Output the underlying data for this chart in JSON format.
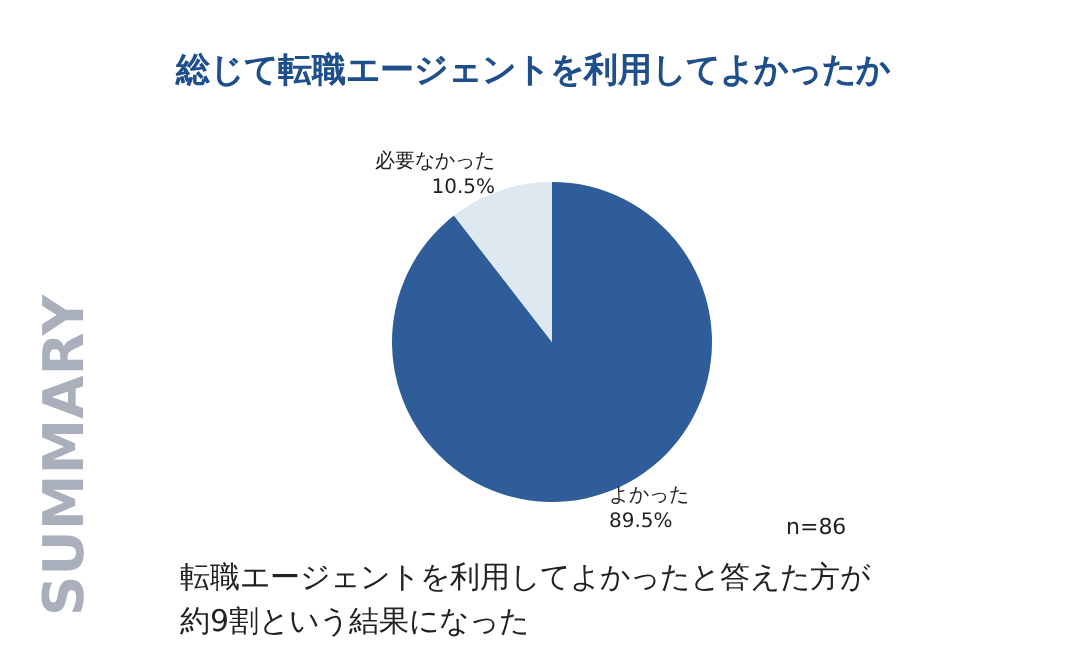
{
  "chart_data": {
    "type": "pie",
    "title": "総じて転職エージェントを利用してよかったか",
    "categories": [
      "よかった",
      "必要なかった"
    ],
    "values": [
      89.5,
      10.5
    ],
    "colors": [
      "#2e5d99",
      "#dde8f0"
    ],
    "value_labels": [
      "89.5%",
      "10.5%"
    ],
    "legend": false,
    "annotations": [
      "n=86",
      "転職エージェントを利用してよかったと答えた方が",
      "約9割という結果になった",
      "SUMMARY"
    ]
  }
}
